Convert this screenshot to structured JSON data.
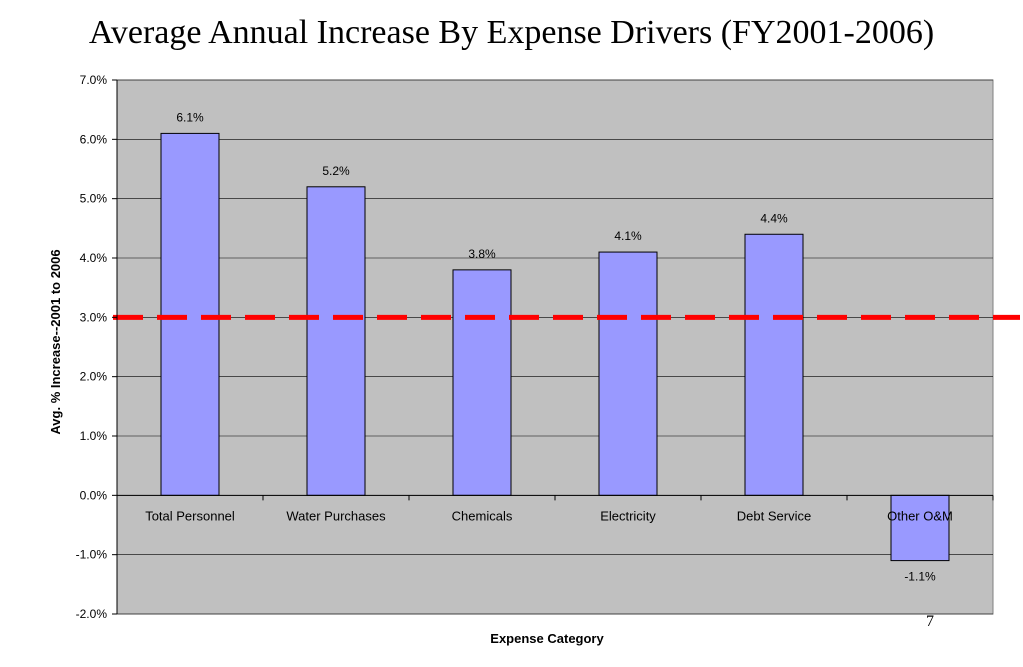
{
  "slide": {
    "title": "Average Annual Increase By Expense Drivers (FY2001-2006)",
    "page_number": "7"
  },
  "chart_data": {
    "type": "bar",
    "title": "Average Annual Increase By Expense Drivers (FY2001-2006)",
    "xlabel": "Expense Category",
    "ylabel": "Avg. % Increase--2001 to 2006",
    "categories": [
      "Total Personnel",
      "Water Purchases",
      "Chemicals",
      "Electricity",
      "Debt Service",
      "Other O&M"
    ],
    "values": [
      6.1,
      5.2,
      3.8,
      4.1,
      4.4,
      -1.1
    ],
    "data_labels": [
      "6.1%",
      "5.2%",
      "3.8%",
      "4.1%",
      "4.4%",
      "-1.1%"
    ],
    "ylim": [
      -2.0,
      7.0
    ],
    "yticks": [
      -2.0,
      -1.0,
      0.0,
      1.0,
      2.0,
      3.0,
      4.0,
      5.0,
      6.0,
      7.0
    ],
    "ytick_labels": [
      "-2.0%",
      "-1.0%",
      "0.0%",
      "1.0%",
      "2.0%",
      "3.0%",
      "4.0%",
      "5.0%",
      "6.0%",
      "7.0%"
    ],
    "reference_line": {
      "value": 3.0,
      "color": "#ff0000",
      "style": "dashed"
    },
    "grid": true,
    "legend": "none",
    "colors": {
      "bar_fill": "#9999ff",
      "bar_stroke": "#000000",
      "plot_background": "#c0c0c0",
      "gridline": "#000000"
    }
  }
}
